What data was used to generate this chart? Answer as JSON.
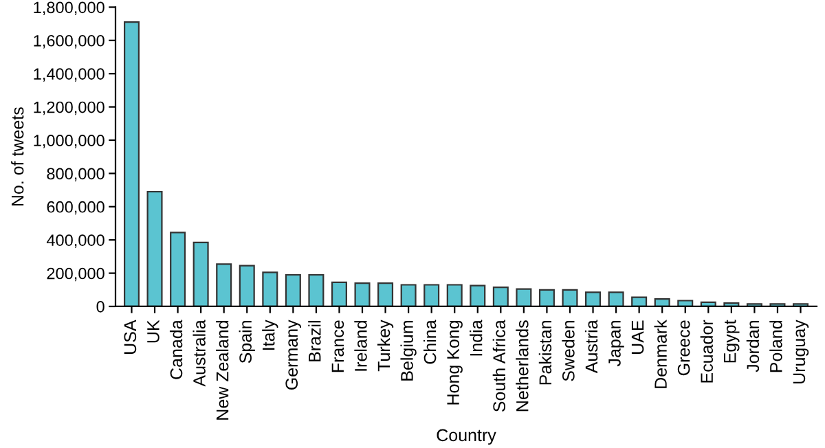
{
  "chart_data": {
    "type": "bar",
    "xlabel": "Country",
    "ylabel": "No. of tweets",
    "categories": [
      "USA",
      "UK",
      "Canada",
      "Australia",
      "New Zealand",
      "Spain",
      "Italy",
      "Germany",
      "Brazil",
      "France",
      "Ireland",
      "Turkey",
      "Belgium",
      "China",
      "Hong Kong",
      "India",
      "South Africa",
      "Netherlands",
      "Pakistan",
      "Sweden",
      "Austria",
      "Japan",
      "UAE",
      "Denmark",
      "Greece",
      "Ecuador",
      "Egypt",
      "Jordan",
      "Poland",
      "Uruguay"
    ],
    "values": [
      1710000,
      690000,
      445000,
      385000,
      255000,
      245000,
      205000,
      190000,
      190000,
      145000,
      140000,
      140000,
      130000,
      130000,
      130000,
      125000,
      115000,
      105000,
      100000,
      100000,
      85000,
      85000,
      55000,
      45000,
      35000,
      25000,
      20000,
      15000,
      15000,
      15000
    ],
    "color": "#5bc4d1",
    "ylim": [
      0,
      1800000
    ],
    "yticks": [
      {
        "value": 0,
        "label": "0"
      },
      {
        "value": 200000,
        "label": "200,000"
      },
      {
        "value": 400000,
        "label": "400,000"
      },
      {
        "value": 600000,
        "label": "600,000"
      },
      {
        "value": 800000,
        "label": "800,000"
      },
      {
        "value": 1000000,
        "label": "1,000,000"
      },
      {
        "value": 1200000,
        "label": "1,200,000"
      },
      {
        "value": 1400000,
        "label": "1,400,000"
      },
      {
        "value": 1600000,
        "label": "1,600,000"
      },
      {
        "value": 1800000,
        "label": "1,800,000"
      }
    ]
  }
}
